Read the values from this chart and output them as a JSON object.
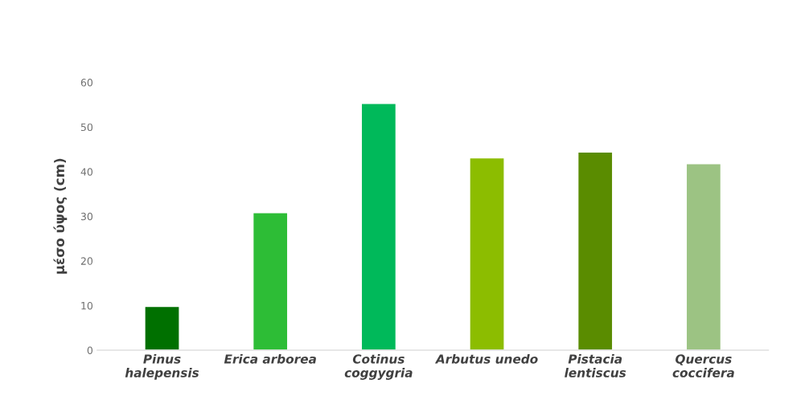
{
  "chart_data": {
    "type": "bar",
    "ylabel": "μέσο ύψος (cm)",
    "categories": [
      "Pinus\nhalepensis",
      "Erica arborea",
      "Cotinus\ncoggygria",
      "Arbutus unedo",
      "Pistacia\nlentiscus",
      "Quercus\ncoccifera"
    ],
    "values": [
      9.8,
      30.8,
      55.3,
      43.1,
      44.4,
      41.8
    ],
    "colors": [
      "#007000",
      "#2dbd36",
      "#00b95a",
      "#8cbd00",
      "#5a8c00",
      "#9cc383"
    ],
    "ylim": [
      0,
      60
    ],
    "yticks": [
      0,
      10,
      20,
      30,
      40,
      50,
      60
    ],
    "grid": false,
    "legend": false
  }
}
